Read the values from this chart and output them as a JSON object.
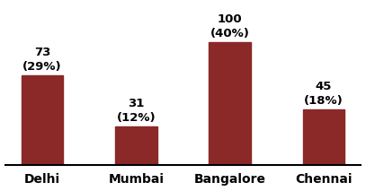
{
  "categories": [
    "Delhi",
    "Mumbai",
    "Bangalore",
    "Chennai"
  ],
  "values": [
    73,
    31,
    100,
    45
  ],
  "percentages": [
    "(29%)",
    "(12%)",
    "(40%)",
    "(18%)"
  ],
  "bar_color": "#8B2828",
  "background_color": "#FFFFFF",
  "ylim": [
    0,
    130
  ],
  "bar_width": 0.45,
  "label_fontsize": 9.5,
  "tick_fontsize": 10,
  "label_fontweight": "bold",
  "tick_fontweight": "bold"
}
